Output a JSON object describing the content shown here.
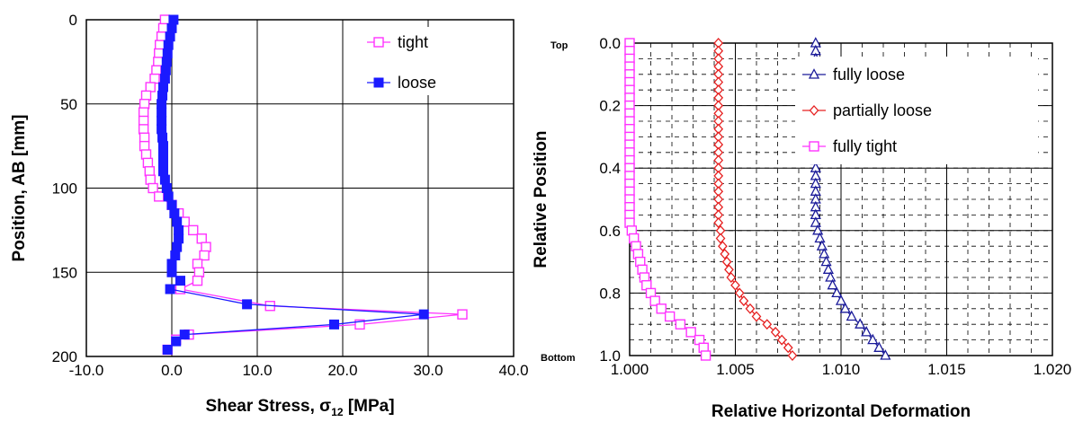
{
  "chart_data": [
    {
      "type": "line",
      "xlabel": "Shear Stress, σ",
      "xlabel_sub": "12",
      "xlabel_unit": " [MPa]",
      "ylabel": "Position, AB [mm]",
      "xlim": [
        -10,
        40
      ],
      "ylim": [
        0,
        200
      ],
      "y_inverted": true,
      "x_ticks": [
        -10,
        0,
        10,
        20,
        30,
        40
      ],
      "x_tick_labels": [
        "-10.0",
        "0.0",
        "10.0",
        "20.0",
        "30.0",
        "40.0"
      ],
      "y_ticks": [
        0,
        50,
        100,
        150,
        200
      ],
      "y_tick_labels": [
        "0",
        "50",
        "100",
        "150",
        "200"
      ],
      "grid": true,
      "legend_position": "top-right",
      "series": [
        {
          "name": "tight",
          "color": "#ff33ff",
          "marker": "open-square",
          "points": [
            [
              -0.8,
              0
            ],
            [
              -1.0,
              5
            ],
            [
              -1.2,
              10
            ],
            [
              -1.4,
              15
            ],
            [
              -1.5,
              20
            ],
            [
              -1.6,
              25
            ],
            [
              -1.8,
              30
            ],
            [
              -2.0,
              35
            ],
            [
              -2.5,
              40
            ],
            [
              -3.0,
              45
            ],
            [
              -3.2,
              50
            ],
            [
              -3.3,
              55
            ],
            [
              -3.3,
              60
            ],
            [
              -3.3,
              65
            ],
            [
              -3.2,
              70
            ],
            [
              -3.2,
              75
            ],
            [
              -3.0,
              80
            ],
            [
              -2.8,
              85
            ],
            [
              -2.6,
              90
            ],
            [
              -2.5,
              95
            ],
            [
              -2.2,
              100
            ],
            [
              -1.5,
              105
            ],
            [
              0,
              110
            ],
            [
              0.8,
              115
            ],
            [
              1.5,
              120
            ],
            [
              2.5,
              125
            ],
            [
              3.5,
              130
            ],
            [
              4.0,
              135
            ],
            [
              3.8,
              140
            ],
            [
              3.0,
              145
            ],
            [
              3.2,
              150
            ],
            [
              3.0,
              155
            ],
            [
              1.0,
              160
            ],
            [
              11.5,
              170
            ],
            [
              34.0,
              175
            ],
            [
              22.0,
              181
            ],
            [
              2.0,
              187
            ],
            [
              0.5,
              190
            ],
            [
              -0.5,
              196
            ]
          ]
        },
        {
          "name": "loose",
          "color": "#1a1aff",
          "marker": "filled-square",
          "points": [
            [
              0.2,
              0
            ],
            [
              0.0,
              5
            ],
            [
              -0.2,
              10
            ],
            [
              -0.4,
              15
            ],
            [
              -0.5,
              20
            ],
            [
              -0.6,
              25
            ],
            [
              -0.7,
              30
            ],
            [
              -0.8,
              35
            ],
            [
              -1.0,
              40
            ],
            [
              -1.1,
              45
            ],
            [
              -1.2,
              50
            ],
            [
              -1.2,
              55
            ],
            [
              -1.2,
              60
            ],
            [
              -1.2,
              65
            ],
            [
              -1.1,
              70
            ],
            [
              -1.0,
              75
            ],
            [
              -1.0,
              80
            ],
            [
              -1.0,
              85
            ],
            [
              -1.0,
              90
            ],
            [
              -0.8,
              95
            ],
            [
              -0.6,
              100
            ],
            [
              -0.4,
              105
            ],
            [
              0,
              110
            ],
            [
              0.3,
              115
            ],
            [
              0.6,
              120
            ],
            [
              0.8,
              125
            ],
            [
              0.8,
              130
            ],
            [
              0.6,
              135
            ],
            [
              0.4,
              140
            ],
            [
              0.0,
              145
            ],
            [
              0.0,
              150
            ],
            [
              1.0,
              155
            ],
            [
              -0.2,
              160
            ],
            [
              8.8,
              169
            ],
            [
              29.5,
              175
            ],
            [
              19.0,
              181
            ],
            [
              1.5,
              187
            ],
            [
              0.5,
              191
            ],
            [
              -0.5,
              196
            ]
          ]
        }
      ]
    },
    {
      "type": "line",
      "xlabel": "Relative Horizontal Deformation",
      "ylabel": "Relative Position",
      "xlim": [
        1.0,
        1.02
      ],
      "ylim": [
        0,
        1
      ],
      "y_inverted": true,
      "x_ticks": [
        1.0,
        1.005,
        1.01,
        1.015,
        1.02
      ],
      "x_tick_labels": [
        "1.000",
        "1.005",
        "1.010",
        "1.015",
        "1.020"
      ],
      "y_ticks": [
        0,
        0.2,
        0.4,
        0.6,
        0.8,
        1.0
      ],
      "y_tick_labels": [
        "0.0",
        "0.2",
        "0.4",
        "0.6",
        "0.8",
        "1.0"
      ],
      "y_end_labels": {
        "top": "Top",
        "bottom": "Bottom"
      },
      "grid": true,
      "legend_position": "top-right",
      "series": [
        {
          "name": "fully loose",
          "color": "#1a1a99",
          "marker": "open-triangle",
          "points": [
            [
              1.0088,
              0
            ],
            [
              1.0088,
              0.025
            ],
            [
              1.0088,
              0.05
            ],
            [
              1.0088,
              0.075
            ],
            [
              1.0088,
              0.1
            ],
            [
              1.0088,
              0.125
            ],
            [
              1.0088,
              0.15
            ],
            [
              1.0088,
              0.175
            ],
            [
              1.0088,
              0.2
            ],
            [
              1.0088,
              0.225
            ],
            [
              1.0088,
              0.25
            ],
            [
              1.0088,
              0.275
            ],
            [
              1.0088,
              0.3
            ],
            [
              1.0088,
              0.325
            ],
            [
              1.0088,
              0.35
            ],
            [
              1.0088,
              0.375
            ],
            [
              1.0088,
              0.4
            ],
            [
              1.0088,
              0.425
            ],
            [
              1.0088,
              0.45
            ],
            [
              1.0088,
              0.475
            ],
            [
              1.0088,
              0.5
            ],
            [
              1.0088,
              0.525
            ],
            [
              1.0088,
              0.55
            ],
            [
              1.0088,
              0.575
            ],
            [
              1.0089,
              0.6
            ],
            [
              1.009,
              0.625
            ],
            [
              1.0091,
              0.65
            ],
            [
              1.0092,
              0.675
            ],
            [
              1.0093,
              0.7
            ],
            [
              1.0094,
              0.725
            ],
            [
              1.0095,
              0.75
            ],
            [
              1.0096,
              0.775
            ],
            [
              1.0098,
              0.8
            ],
            [
              1.01,
              0.825
            ],
            [
              1.0102,
              0.85
            ],
            [
              1.0105,
              0.875
            ],
            [
              1.0109,
              0.9
            ],
            [
              1.0112,
              0.925
            ],
            [
              1.0115,
              0.95
            ],
            [
              1.0118,
              0.975
            ],
            [
              1.0121,
              1.0
            ]
          ]
        },
        {
          "name": "partially loose",
          "color": "#e62020",
          "marker": "open-diamond",
          "points": [
            [
              1.0042,
              0
            ],
            [
              1.0042,
              0.025
            ],
            [
              1.0042,
              0.05
            ],
            [
              1.0042,
              0.075
            ],
            [
              1.0042,
              0.1
            ],
            [
              1.0042,
              0.125
            ],
            [
              1.0042,
              0.15
            ],
            [
              1.0042,
              0.175
            ],
            [
              1.0042,
              0.2
            ],
            [
              1.0042,
              0.225
            ],
            [
              1.0042,
              0.25
            ],
            [
              1.0042,
              0.275
            ],
            [
              1.0042,
              0.3
            ],
            [
              1.0042,
              0.325
            ],
            [
              1.0042,
              0.35
            ],
            [
              1.0042,
              0.375
            ],
            [
              1.0042,
              0.4
            ],
            [
              1.0042,
              0.425
            ],
            [
              1.0042,
              0.45
            ],
            [
              1.0042,
              0.475
            ],
            [
              1.0042,
              0.5
            ],
            [
              1.0042,
              0.525
            ],
            [
              1.0042,
              0.55
            ],
            [
              1.0042,
              0.575
            ],
            [
              1.0043,
              0.6
            ],
            [
              1.0043,
              0.625
            ],
            [
              1.0044,
              0.65
            ],
            [
              1.0045,
              0.675
            ],
            [
              1.0046,
              0.7
            ],
            [
              1.0047,
              0.725
            ],
            [
              1.0048,
              0.75
            ],
            [
              1.005,
              0.775
            ],
            [
              1.0052,
              0.8
            ],
            [
              1.0054,
              0.825
            ],
            [
              1.0057,
              0.85
            ],
            [
              1.006,
              0.875
            ],
            [
              1.0065,
              0.9
            ],
            [
              1.0069,
              0.925
            ],
            [
              1.0072,
              0.95
            ],
            [
              1.0075,
              0.975
            ],
            [
              1.0077,
              1.0
            ]
          ]
        },
        {
          "name": "fully tight",
          "color": "#ff33ff",
          "marker": "open-square",
          "points": [
            [
              1.0,
              0
            ],
            [
              1.0,
              0.025
            ],
            [
              1.0,
              0.05
            ],
            [
              1.0,
              0.075
            ],
            [
              1.0,
              0.1
            ],
            [
              1.0,
              0.125
            ],
            [
              1.0,
              0.15
            ],
            [
              1.0,
              0.175
            ],
            [
              1.0,
              0.2
            ],
            [
              1.0,
              0.225
            ],
            [
              1.0,
              0.25
            ],
            [
              1.0,
              0.275
            ],
            [
              1.0,
              0.3
            ],
            [
              1.0,
              0.325
            ],
            [
              1.0,
              0.35
            ],
            [
              1.0,
              0.375
            ],
            [
              1.0,
              0.4
            ],
            [
              1.0,
              0.425
            ],
            [
              1.0,
              0.45
            ],
            [
              1.0,
              0.475
            ],
            [
              1.0,
              0.5
            ],
            [
              1.0,
              0.525
            ],
            [
              1.0,
              0.55
            ],
            [
              1.0,
              0.575
            ],
            [
              1.0001,
              0.6
            ],
            [
              1.0002,
              0.625
            ],
            [
              1.0003,
              0.65
            ],
            [
              1.0004,
              0.675
            ],
            [
              1.0005,
              0.7
            ],
            [
              1.0006,
              0.725
            ],
            [
              1.0007,
              0.75
            ],
            [
              1.0008,
              0.775
            ],
            [
              1.001,
              0.8
            ],
            [
              1.0012,
              0.825
            ],
            [
              1.0015,
              0.85
            ],
            [
              1.0019,
              0.875
            ],
            [
              1.0024,
              0.9
            ],
            [
              1.0029,
              0.925
            ],
            [
              1.0033,
              0.95
            ],
            [
              1.0035,
              0.975
            ],
            [
              1.0036,
              1.0
            ]
          ]
        }
      ]
    }
  ]
}
